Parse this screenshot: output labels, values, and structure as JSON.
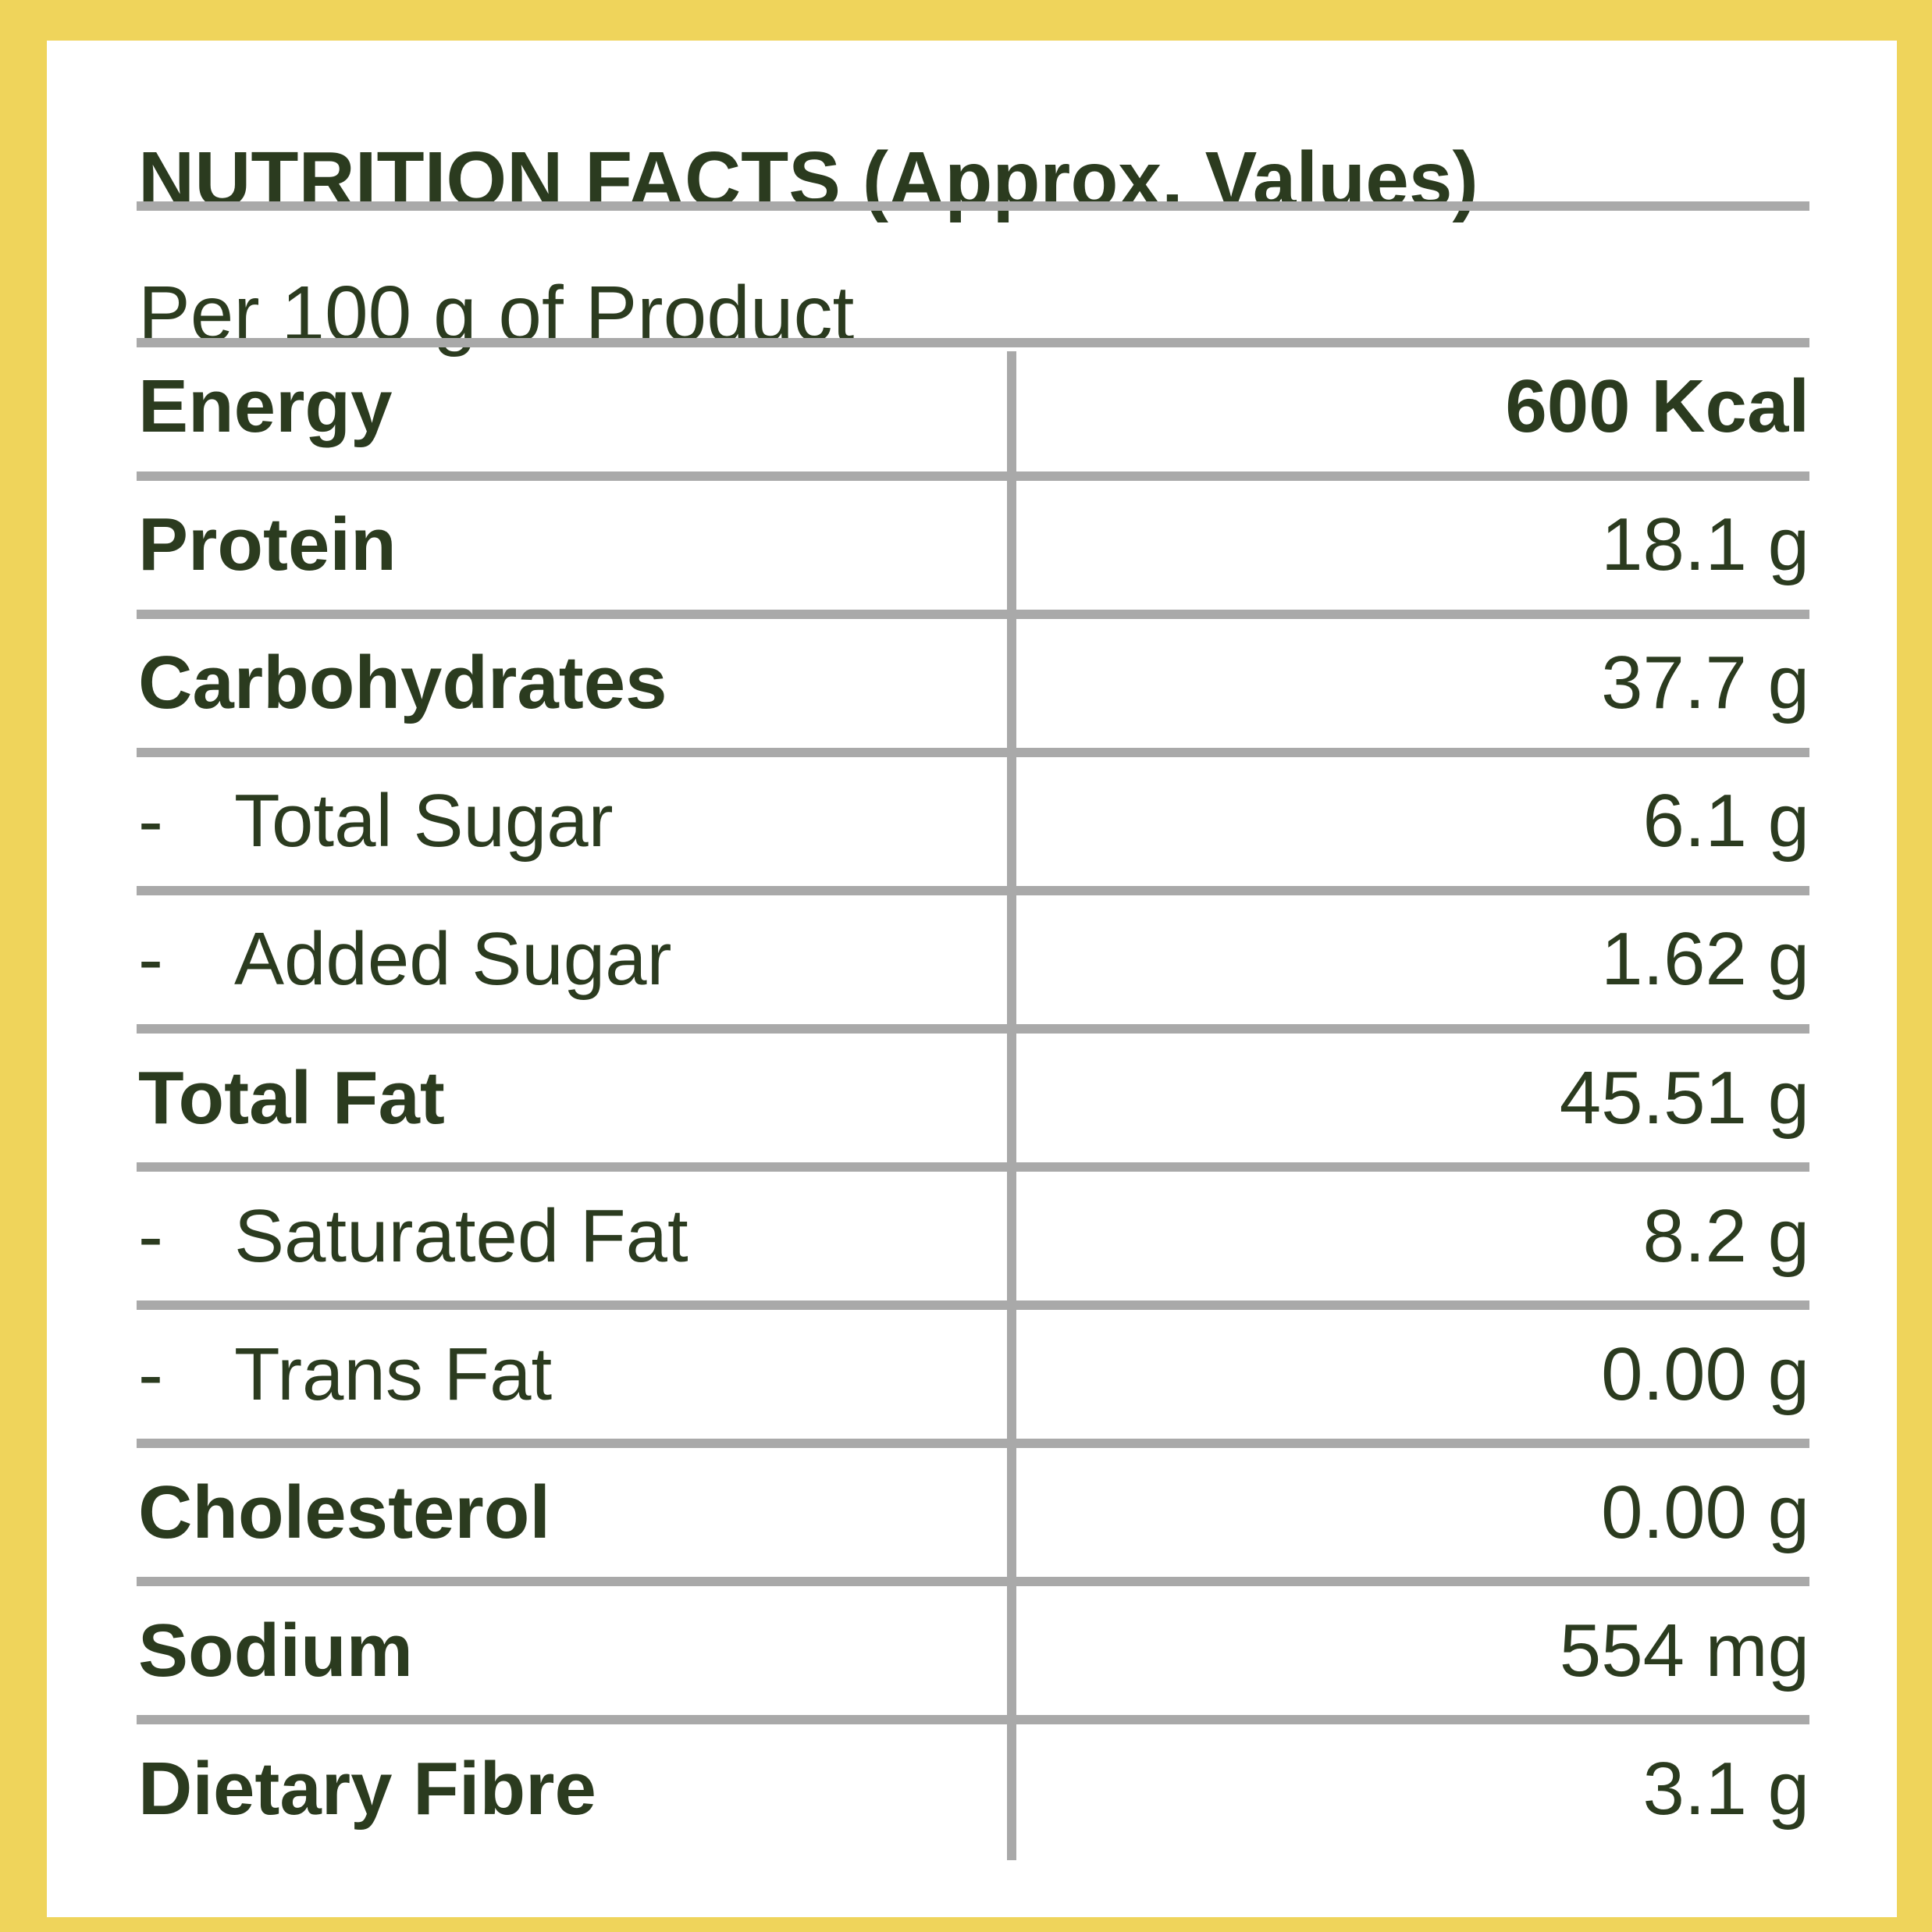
{
  "header": {
    "title": "NUTRITION FACTS (Approx. Values)",
    "subtitle": "Per 100 g of Product"
  },
  "table": {
    "rows": [
      {
        "label": "Energy",
        "value": "600 Kcal"
      },
      {
        "label": "Protein",
        "value": "18.1 g"
      },
      {
        "label": "Carbohydrates",
        "value": "37.7 g"
      },
      {
        "prefix": "-",
        "label": "Total Sugar",
        "value": "6.1 g"
      },
      {
        "prefix": "-",
        "label": "Added Sugar",
        "value": "1.62 g"
      },
      {
        "label": "Total Fat",
        "value": "45.51 g"
      },
      {
        "prefix": "-",
        "label": "Saturated Fat",
        "value": "8.2 g"
      },
      {
        "prefix": "-",
        "label": "Trans Fat",
        "value": "0.00 g"
      },
      {
        "label": "Cholesterol",
        "value": "0.00 g"
      },
      {
        "label": "Sodium",
        "value": "554 mg"
      },
      {
        "label": "Dietary Fibre",
        "value": "3.1 g"
      }
    ]
  }
}
